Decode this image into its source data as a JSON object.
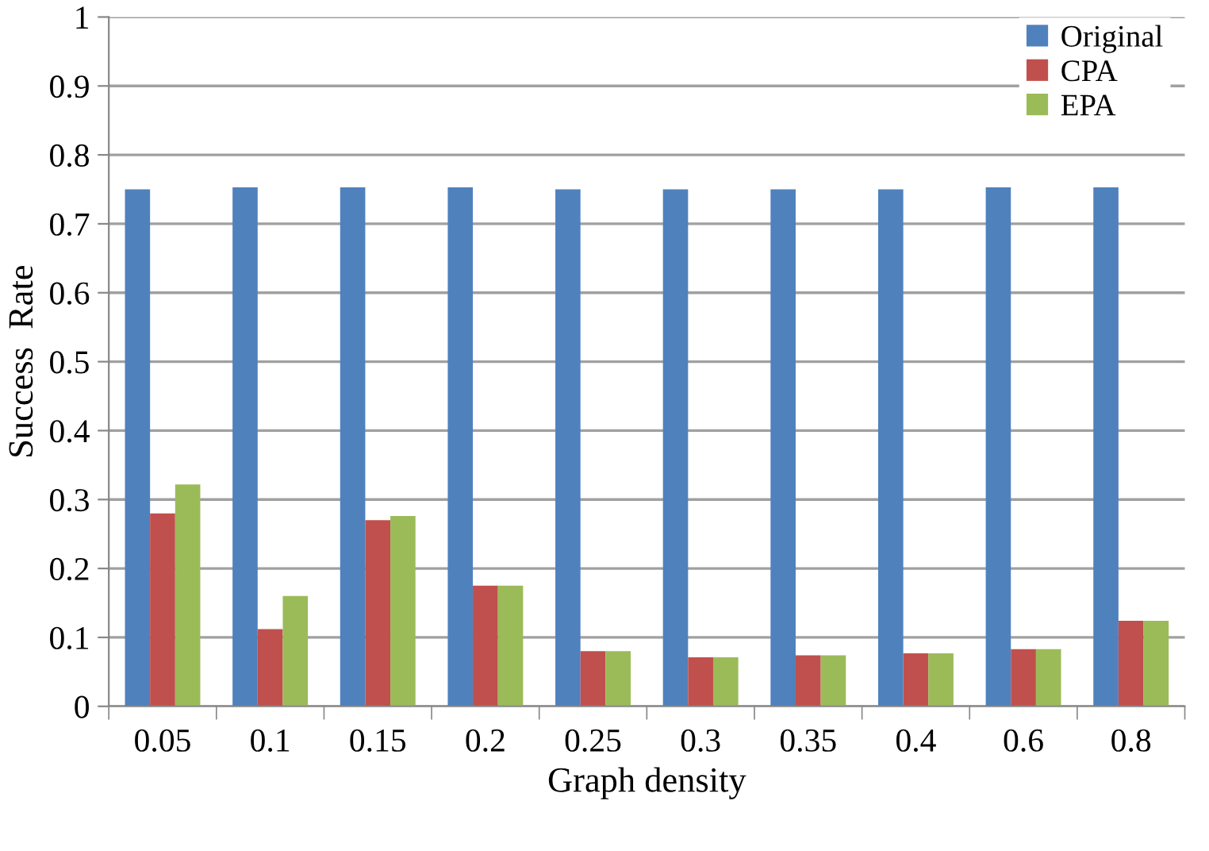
{
  "chart_data": {
    "type": "bar",
    "xlabel": "Graph density",
    "ylabel": "Success  Rate",
    "categories": [
      "0.05",
      "0.1",
      "0.15",
      "0.2",
      "0.25",
      "0.3",
      "0.35",
      "0.4",
      "0.6",
      "0.8"
    ],
    "series": [
      {
        "name": "Original",
        "color": "#4f81bd",
        "values": [
          0.75,
          0.753,
          0.753,
          0.753,
          0.75,
          0.75,
          0.75,
          0.75,
          0.753,
          0.753
        ]
      },
      {
        "name": "CPA",
        "color": "#c0504d",
        "values": [
          0.28,
          0.112,
          0.27,
          0.175,
          0.08,
          0.071,
          0.074,
          0.077,
          0.083,
          0.124
        ]
      },
      {
        "name": "EPA",
        "color": "#9bbb59",
        "values": [
          0.322,
          0.16,
          0.276,
          0.175,
          0.08,
          0.071,
          0.074,
          0.077,
          0.083,
          0.124
        ]
      }
    ],
    "ylim": [
      0,
      1
    ],
    "yticks": [
      0,
      0.1,
      0.2,
      0.3,
      0.4,
      0.5,
      0.6,
      0.7,
      0.8,
      0.9,
      1
    ],
    "grid": "y",
    "legend": "top right"
  }
}
